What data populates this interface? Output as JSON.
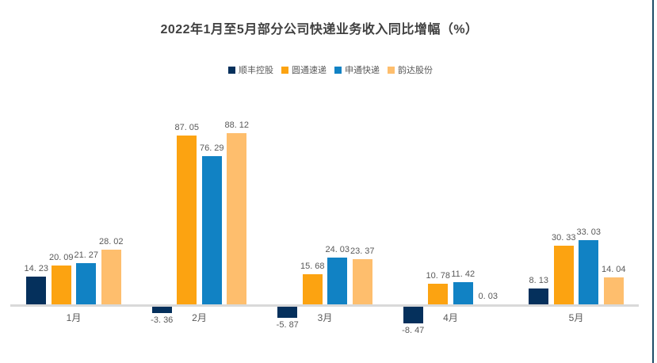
{
  "title": "2022年1月至5月部分公司快递业务收入同比增幅（%）",
  "colors": {
    "baseline": "#d9d9d9",
    "label_text": "#595959",
    "title_text": "#404040",
    "card_right_border": "#1f4e68"
  },
  "chart_data": {
    "type": "bar",
    "title": "2022年1月至5月部分公司快递业务收入同比增幅（%）",
    "xlabel": "",
    "ylabel": "",
    "categories": [
      "1月",
      "2月",
      "3月",
      "4月",
      "5月"
    ],
    "series": [
      {
        "name": "顺丰控股",
        "color": "#05305c",
        "values": [
          14.23,
          -3.36,
          -5.87,
          -8.47,
          8.13
        ],
        "labels": [
          "14. 23",
          "-3. 36",
          "-5. 87",
          "-8. 47",
          "8. 13"
        ]
      },
      {
        "name": "圆通速递",
        "color": "#fca311",
        "values": [
          20.09,
          87.05,
          15.68,
          10.78,
          30.33
        ],
        "labels": [
          "20. 09",
          "87. 05",
          "15. 68",
          "10. 78",
          "30. 33"
        ]
      },
      {
        "name": "申通快递",
        "color": "#1182c4",
        "values": [
          21.27,
          76.29,
          24.03,
          11.42,
          33.03
        ],
        "labels": [
          "21. 27",
          "76. 29",
          "24. 03",
          "11. 42",
          "33. 03"
        ]
      },
      {
        "name": "韵达股份",
        "color": "#febe6d",
        "values": [
          28.02,
          88.12,
          23.37,
          0.03,
          14.04
        ],
        "labels": [
          "28. 02",
          "88. 12",
          "23. 37",
          "0. 03",
          "14. 04"
        ]
      }
    ],
    "ylim": [
      -10,
      95
    ],
    "grid": false,
    "y_axis_visible": false,
    "value_labels": true,
    "legend_position": "top"
  }
}
